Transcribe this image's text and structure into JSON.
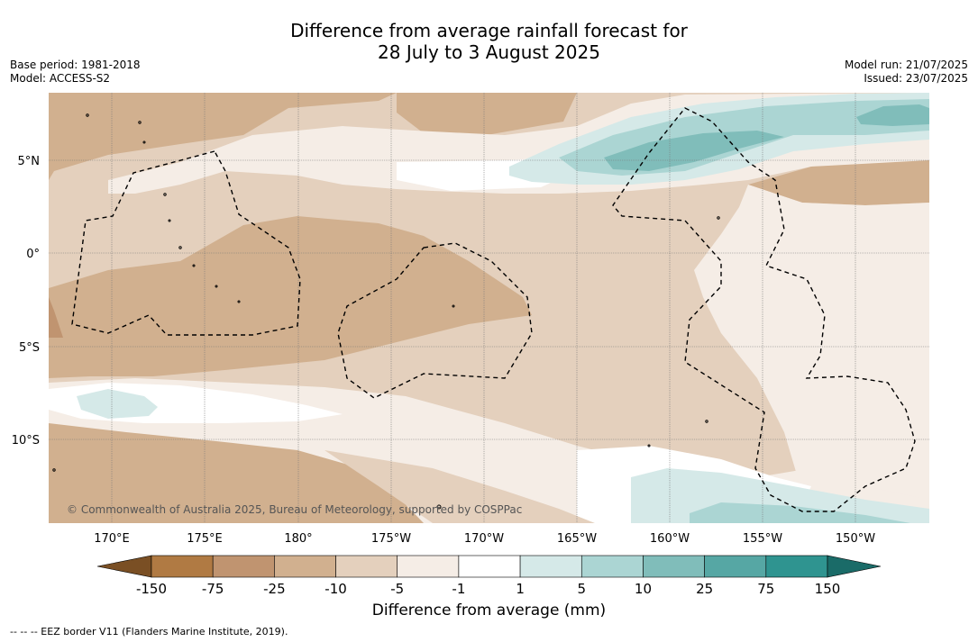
{
  "title": {
    "line1": "Difference from average rainfall forecast for",
    "line2": "28 July to 3 August 2025"
  },
  "meta": {
    "base_period": "Base period: 1981-2018",
    "model": "Model: ACCESS-S2",
    "model_run": "Model run: 21/07/2025",
    "issued": "Issued: 23/07/2025"
  },
  "map": {
    "lon_labels": [
      "170°E",
      "175°E",
      "180°",
      "175°W",
      "170°W",
      "165°W",
      "160°W",
      "155°W",
      "150°W"
    ],
    "lat_labels": [
      "5°N",
      "0°",
      "5°S",
      "10°S"
    ],
    "copyright": "© Commonwealth of Australia 2025, Bureau of Meteorology, supported by COSPPac"
  },
  "colorbar": {
    "title": "Difference from average (mm)",
    "tick_labels": [
      "-150",
      "-75",
      "-25",
      "-10",
      "-5",
      "-1",
      "1",
      "5",
      "10",
      "25",
      "75",
      "150"
    ],
    "colors": [
      "#7a4f24",
      "#b07a43",
      "#c09470",
      "#d1b08f",
      "#e4d0bd",
      "#f5ede6",
      "#ffffff",
      "#d5e9e8",
      "#abd5d3",
      "#80bdba",
      "#56a7a4",
      "#2f9490",
      "#1a6b68"
    ]
  },
  "footer": "-- -- -- EEZ border V11 (Flanders Marine Institute, 2019)."
}
